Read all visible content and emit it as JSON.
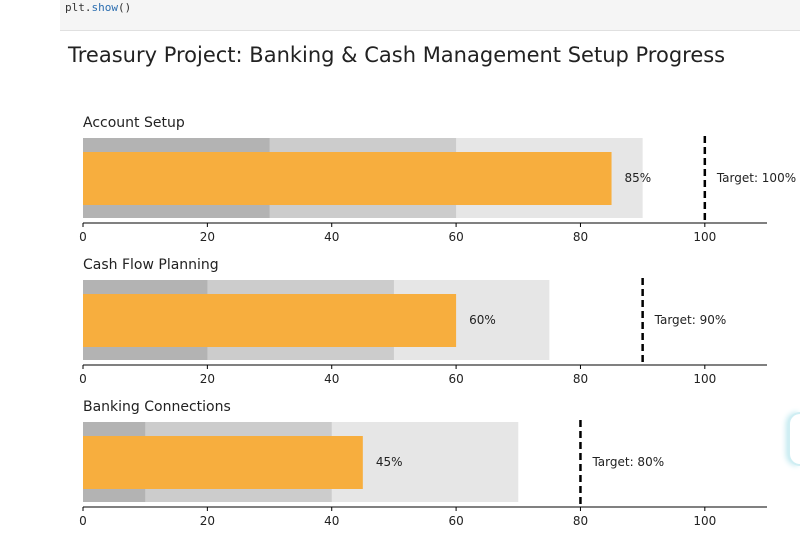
{
  "code_cell": {
    "prefix": "plt.",
    "fn": "show",
    "suffix": "()"
  },
  "chart_data": {
    "type": "bullet",
    "title": "Treasury Project: Banking & Cash Management Setup Progress",
    "xlim": [
      0,
      110
    ],
    "xticks": [
      0,
      20,
      40,
      60,
      80,
      100
    ],
    "colors": {
      "bar": "#f7ae3e",
      "bands": [
        "#b3b3b3",
        "#cccccc",
        "#e6e6e6"
      ],
      "target": "#000000"
    },
    "charts": [
      {
        "name": "Account Setup",
        "value": 85,
        "value_label": "85%",
        "target": 100,
        "target_label": "Target: 100%",
        "ranges": [
          30,
          60,
          90
        ]
      },
      {
        "name": "Cash Flow Planning",
        "value": 60,
        "value_label": "60%",
        "target": 90,
        "target_label": "Target: 90%",
        "ranges": [
          20,
          50,
          75
        ]
      },
      {
        "name": "Banking Connections",
        "value": 45,
        "value_label": "45%",
        "target": 80,
        "target_label": "Target: 80%",
        "ranges": [
          10,
          40,
          70
        ]
      }
    ]
  }
}
